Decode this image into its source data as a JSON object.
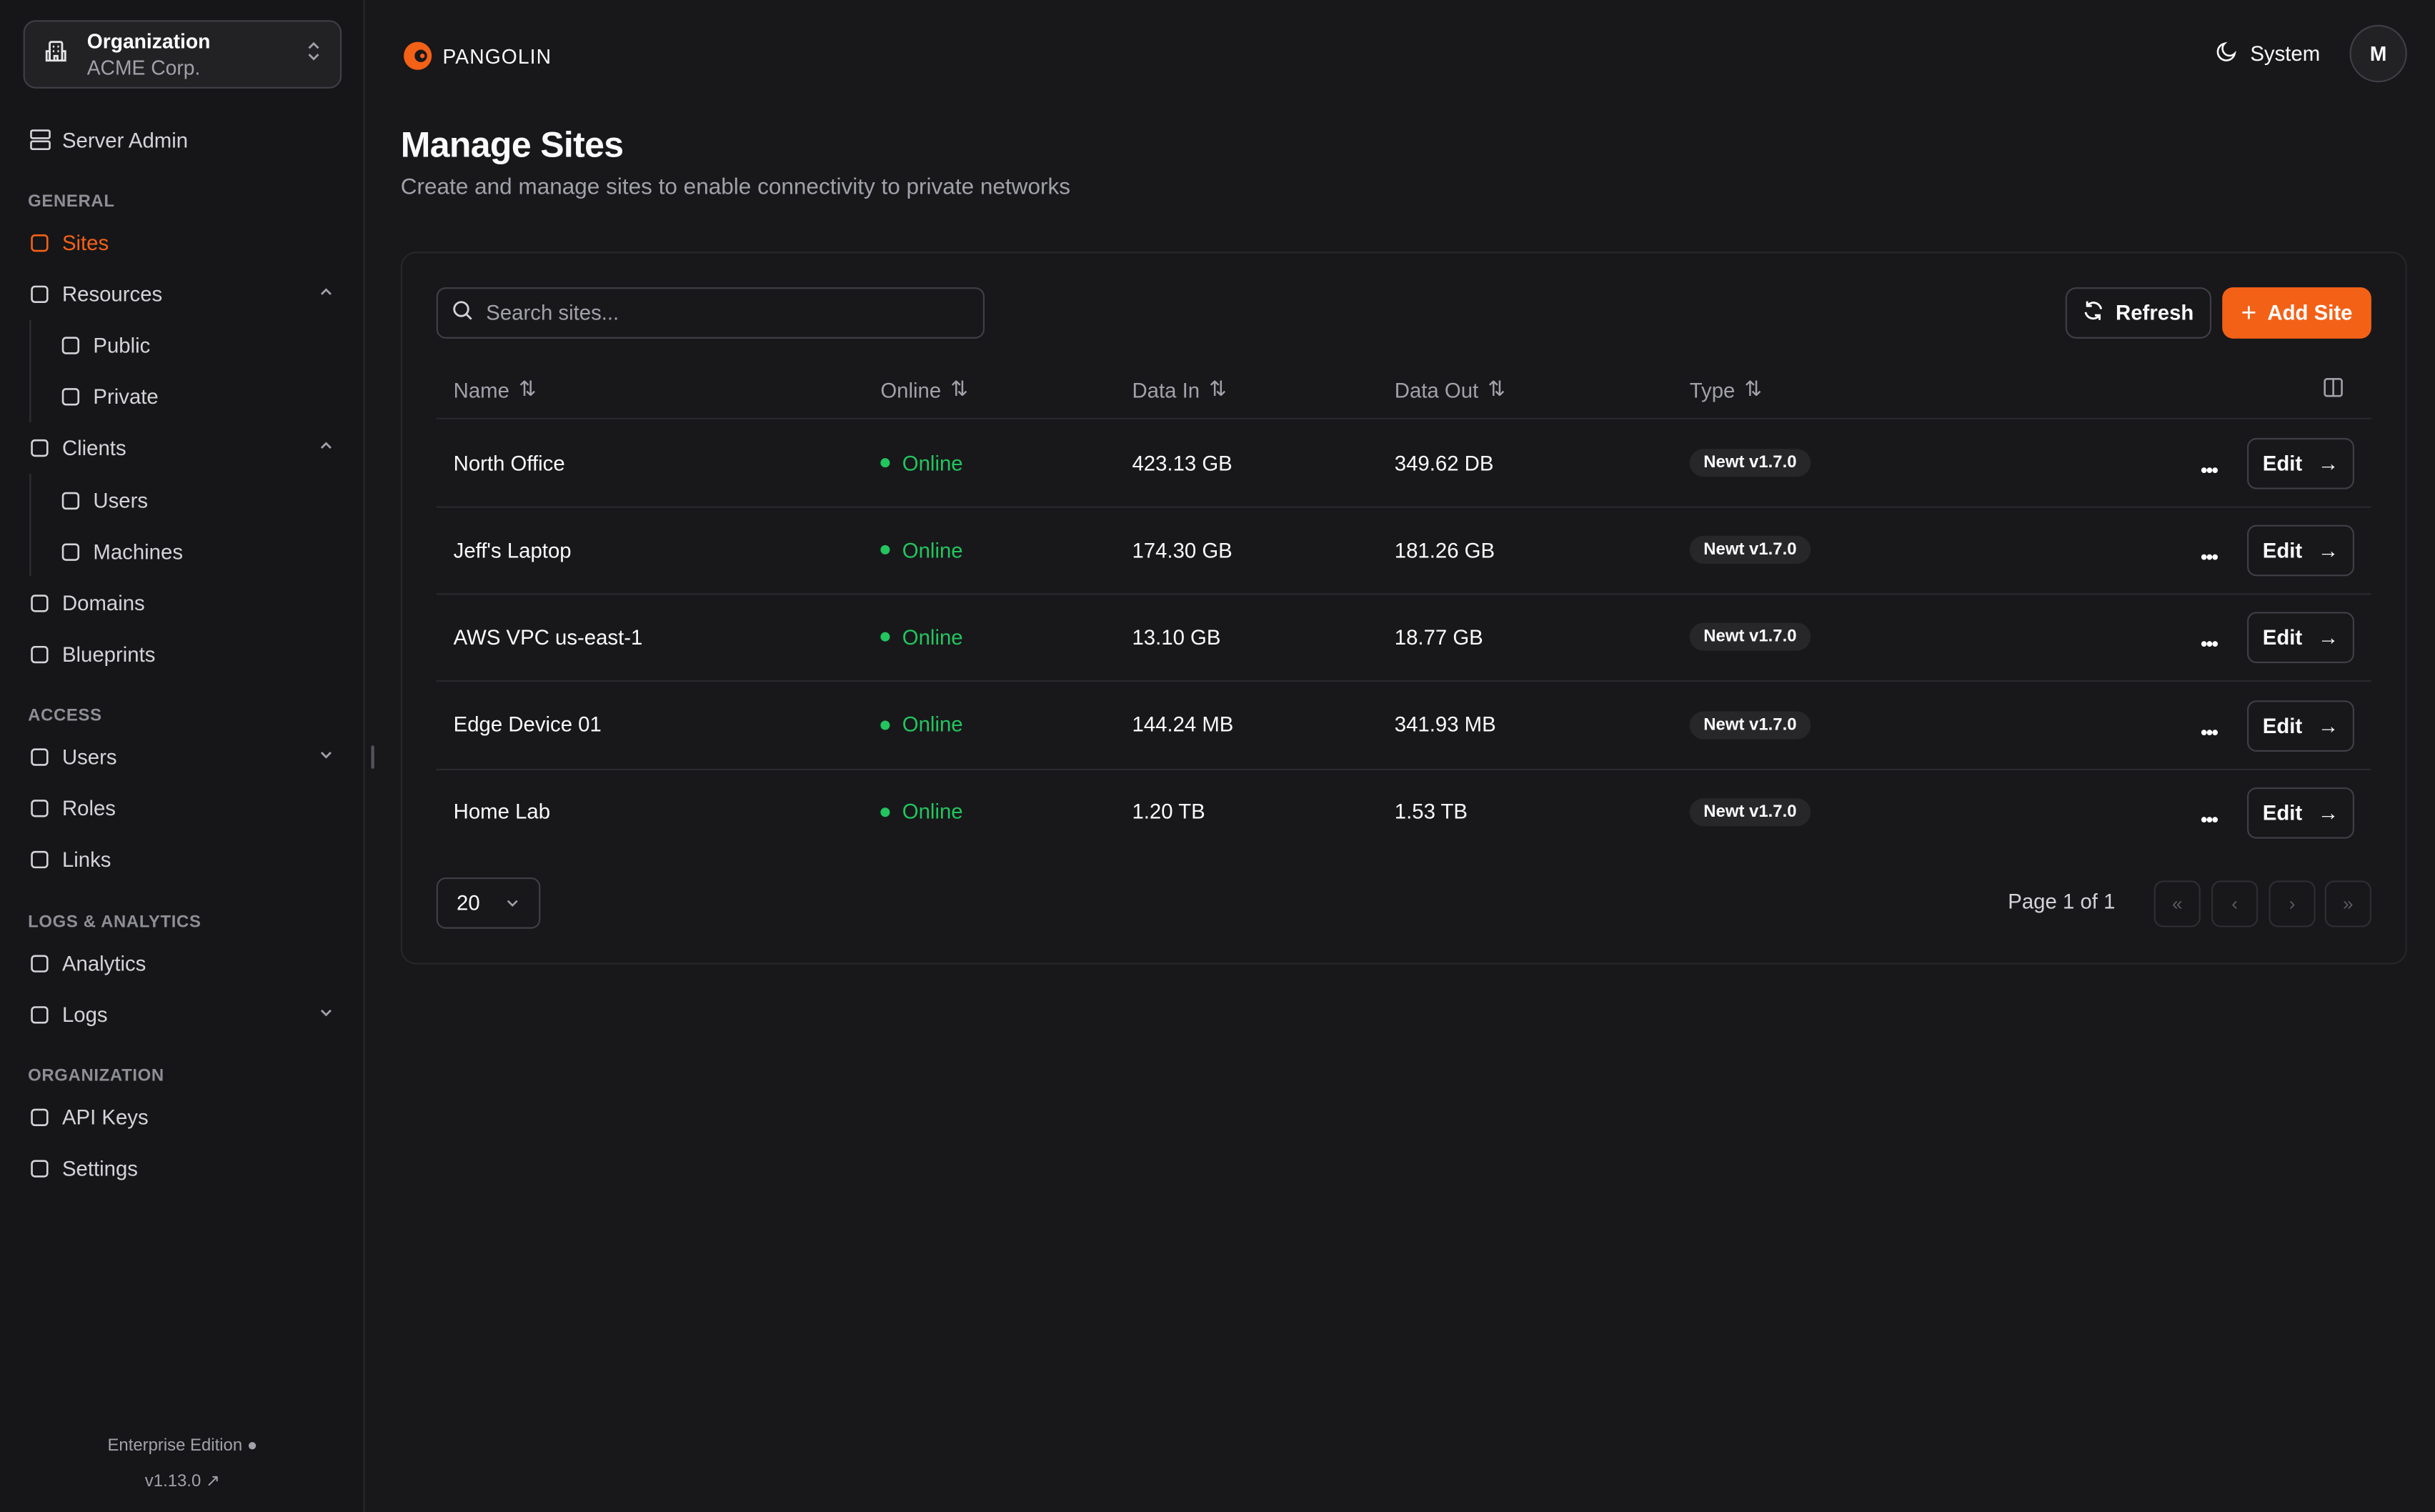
{
  "org": {
    "label": "Organization",
    "name": "ACME Corp."
  },
  "sidebar": {
    "server_admin": "Server Admin",
    "sections": {
      "general": "GENERAL",
      "access": "ACCESS",
      "logs": "LOGS & ANALYTICS",
      "organization": "ORGANIZATION"
    },
    "items": [
      {
        "label": "Sites",
        "icon": "sites-icon",
        "active": true
      },
      {
        "label": "Resources",
        "icon": "resources-icon",
        "chevron": "up"
      },
      {
        "label": "Public",
        "icon": "globe-icon",
        "sub": true
      },
      {
        "label": "Private",
        "icon": "globe-lock-icon",
        "sub": true
      },
      {
        "label": "Clients",
        "icon": "monitor-icon",
        "chevron": "up"
      },
      {
        "label": "Users",
        "icon": "laptop-icon",
        "sub": true
      },
      {
        "label": "Machines",
        "icon": "server-icon",
        "sub": true
      },
      {
        "label": "Domains",
        "icon": "globe-icon"
      },
      {
        "label": "Blueprints",
        "icon": "file-icon"
      },
      {
        "label": "Users",
        "icon": "user-icon",
        "chevron": "down"
      },
      {
        "label": "Roles",
        "icon": "users-icon"
      },
      {
        "label": "Links",
        "icon": "link-icon"
      },
      {
        "label": "Analytics",
        "icon": "chart-icon"
      },
      {
        "label": "Logs",
        "icon": "list-icon",
        "chevron": "down"
      },
      {
        "label": "API Keys",
        "icon": "key-icon"
      },
      {
        "label": "Settings",
        "icon": "gear-icon"
      }
    ],
    "edition": "Enterprise Edition",
    "version": "v1.13.0"
  },
  "header": {
    "brand": "PANGOLIN",
    "theme": "System",
    "avatar": "M"
  },
  "page": {
    "title": "Manage Sites",
    "subtitle": "Create and manage sites to enable connectivity to private networks"
  },
  "toolbar": {
    "search_placeholder": "Search sites...",
    "refresh": "Refresh",
    "add": "Add Site"
  },
  "table": {
    "columns": [
      "Name",
      "Online",
      "Data In",
      "Data Out",
      "Type"
    ],
    "rows": [
      {
        "name": "North Office",
        "online": "Online",
        "data_in": "423.13 GB",
        "data_out": "349.62 DB",
        "type": "Newt v1.7.0",
        "edit": "Edit"
      },
      {
        "name": "Jeff's Laptop",
        "online": "Online",
        "data_in": "174.30 GB",
        "data_out": "181.26 GB",
        "type": "Newt v1.7.0",
        "edit": "Edit"
      },
      {
        "name": "AWS VPC us-east-1",
        "online": "Online",
        "data_in": "13.10 GB",
        "data_out": "18.77 GB",
        "type": "Newt v1.7.0",
        "edit": "Edit"
      },
      {
        "name": "Edge Device 01",
        "online": "Online",
        "data_in": "144.24 MB",
        "data_out": "341.93 MB",
        "type": "Newt v1.7.0",
        "edit": "Edit"
      },
      {
        "name": "Home Lab",
        "online": "Online",
        "data_in": "1.20 TB",
        "data_out": "1.53 TB",
        "type": "Newt v1.7.0",
        "edit": "Edit"
      }
    ]
  },
  "pagination": {
    "page_size": "20",
    "info": "Page 1 of 1"
  },
  "colors": {
    "accent": "#f36117",
    "online": "#22c55e",
    "background": "#18181b"
  }
}
